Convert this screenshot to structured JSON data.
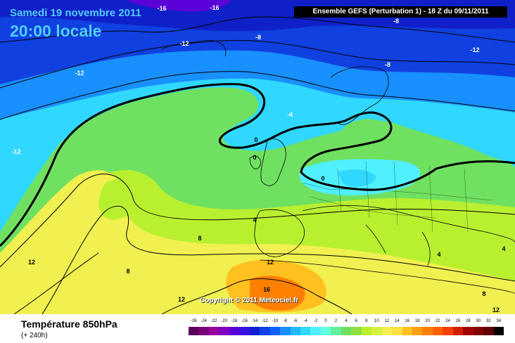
{
  "header": {
    "date": "Samedi 19 novembre 2011",
    "time": "20:00 locale",
    "model": "Ensemble GEFS (Perturbation 1)  -  18 Z du 09/11/2011"
  },
  "map": {
    "copyright": "Copyright © 2011 Meteociel.fr",
    "labels": [
      {
        "text": "-16"
      },
      {
        "text": "-16"
      },
      {
        "text": "-8"
      },
      {
        "text": "-12"
      },
      {
        "text": "-8"
      },
      {
        "text": "-12"
      },
      {
        "text": "-8"
      },
      {
        "text": "-12"
      },
      {
        "text": "-4"
      },
      {
        "text": "-12"
      },
      {
        "text": "0"
      },
      {
        "text": "0"
      },
      {
        "text": "0"
      },
      {
        "text": "4"
      },
      {
        "text": "8"
      },
      {
        "text": "4"
      },
      {
        "text": "4"
      },
      {
        "text": "12"
      },
      {
        "text": "8"
      },
      {
        "text": "12"
      },
      {
        "text": "16"
      },
      {
        "text": "12"
      },
      {
        "text": "8"
      },
      {
        "text": "12"
      }
    ]
  },
  "footer": {
    "title": "Température 850hPa",
    "lead": "(+ 240h)"
  },
  "legend": {
    "ticks": [
      "-26",
      "-24",
      "-22",
      "-20",
      "-18",
      "-16",
      "-14",
      "-12",
      "-10",
      "-8",
      "-6",
      "-4",
      "-2",
      "0",
      "2",
      "4",
      "6",
      "8",
      "10",
      "12",
      "14",
      "16",
      "18",
      "20",
      "22",
      "24",
      "26",
      "28",
      "30",
      "32",
      "34"
    ],
    "colors": [
      "#5a005a",
      "#7a007a",
      "#9a00a0",
      "#8000c0",
      "#5a00d8",
      "#3a10e0",
      "#1020d0",
      "#1040e8",
      "#1060ff",
      "#1890ff",
      "#20b8ff",
      "#30d8ff",
      "#50f0ff",
      "#60ffe0",
      "#60f0a0",
      "#70e060",
      "#90e040",
      "#b8f030",
      "#d8f040",
      "#f0f050",
      "#ffe040",
      "#ffc020",
      "#ffa010",
      "#ff8000",
      "#ff6000",
      "#f04000",
      "#d02000",
      "#a00000",
      "#800000",
      "#600000",
      "#000000"
    ]
  }
}
